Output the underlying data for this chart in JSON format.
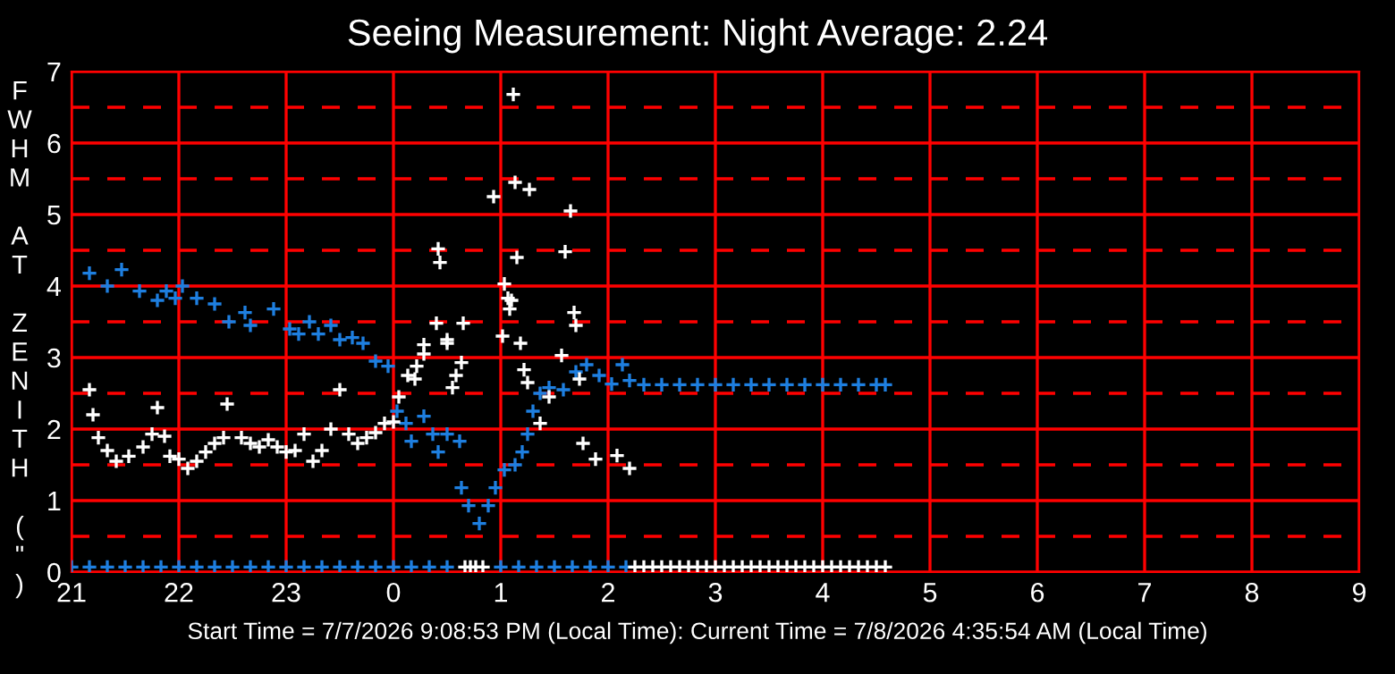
{
  "chart_data": {
    "type": "scatter",
    "title": "Seeing Measurement: Night Average: 2.24",
    "ylabel": "FWHM AT ZENITH (\")",
    "annotations": [
      "Start Time = 7/7/2026 9:08:53 PM (Local Time): Current Time = 7/8/2026 4:35:54 AM (Local Time)"
    ],
    "xlim": [
      "2026-07-07T21:00",
      "2026-07-08T09:00"
    ],
    "ylim": [
      0,
      7
    ],
    "xticks": [
      {
        "value": "2026-07-07T21:00",
        "label": "21"
      },
      {
        "value": "2026-07-07T22:00",
        "label": "22"
      },
      {
        "value": "2026-07-07T23:00",
        "label": "23"
      },
      {
        "value": "2026-07-08T00:00",
        "label": "0"
      },
      {
        "value": "2026-07-08T01:00",
        "label": "1"
      },
      {
        "value": "2026-07-08T02:00",
        "label": "2"
      },
      {
        "value": "2026-07-08T03:00",
        "label": "3"
      },
      {
        "value": "2026-07-08T04:00",
        "label": "4"
      },
      {
        "value": "2026-07-08T05:00",
        "label": "5"
      },
      {
        "value": "2026-07-08T06:00",
        "label": "6"
      },
      {
        "value": "2026-07-08T07:00",
        "label": "7"
      },
      {
        "value": "2026-07-08T08:00",
        "label": "8"
      },
      {
        "value": "2026-07-08T09:00",
        "label": "9"
      }
    ],
    "yticks": [
      0,
      1,
      2,
      3,
      4,
      5,
      6,
      7
    ],
    "grid": true,
    "marker": "cross",
    "ref_lines": [
      {
        "axis": "y",
        "value": 0.5,
        "color": "#ff0000",
        "line_style": "dashed"
      },
      {
        "axis": "y",
        "value": 1.5,
        "color": "#ff0000",
        "line_style": "dashed"
      },
      {
        "axis": "y",
        "value": 2.5,
        "color": "#ff0000",
        "line_style": "dashed"
      },
      {
        "axis": "y",
        "value": 3.5,
        "color": "#ff0000",
        "line_style": "dashed"
      },
      {
        "axis": "y",
        "value": 4.5,
        "color": "#ff0000",
        "line_style": "dashed"
      },
      {
        "axis": "y",
        "value": 5.5,
        "color": "#ff0000",
        "line_style": "dashed"
      },
      {
        "axis": "y",
        "value": 6.5,
        "color": "#ff0000",
        "line_style": "dashed"
      }
    ],
    "series": [
      {
        "color": "#1e7fe0",
        "x": [
          "2026-07-07T21:10",
          "2026-07-07T21:20",
          "2026-07-07T21:28",
          "2026-07-07T21:38",
          "2026-07-07T21:48",
          "2026-07-07T21:53",
          "2026-07-07T21:58",
          "2026-07-07T22:02",
          "2026-07-07T22:10",
          "2026-07-07T22:20",
          "2026-07-07T22:28",
          "2026-07-07T22:37",
          "2026-07-07T22:40",
          "2026-07-07T22:53",
          "2026-07-07T23:02",
          "2026-07-07T23:07",
          "2026-07-07T23:13",
          "2026-07-07T23:18",
          "2026-07-07T23:25",
          "2026-07-07T23:30",
          "2026-07-07T23:37",
          "2026-07-07T23:43",
          "2026-07-07T23:50",
          "2026-07-07T23:57",
          "2026-07-08T00:02",
          "2026-07-08T00:07",
          "2026-07-08T00:10",
          "2026-07-08T00:17",
          "2026-07-08T00:22",
          "2026-07-08T00:25",
          "2026-07-08T00:30",
          "2026-07-08T00:37",
          "2026-07-08T00:38",
          "2026-07-08T00:42",
          "2026-07-08T00:48",
          "2026-07-08T00:53",
          "2026-07-08T00:57",
          "2026-07-08T01:02",
          "2026-07-08T01:08",
          "2026-07-08T01:12",
          "2026-07-08T01:15",
          "2026-07-08T01:18",
          "2026-07-08T01:22",
          "2026-07-08T01:27",
          "2026-07-08T01:35",
          "2026-07-08T01:42",
          "2026-07-08T01:48",
          "2026-07-08T01:55",
          "2026-07-08T02:02",
          "2026-07-08T02:08",
          "2026-07-08T02:12",
          "2026-07-08T02:20",
          "2026-07-08T02:30",
          "2026-07-08T02:40",
          "2026-07-08T02:50",
          "2026-07-08T03:00",
          "2026-07-08T03:10",
          "2026-07-08T03:20",
          "2026-07-08T03:30",
          "2026-07-08T03:40",
          "2026-07-08T03:50",
          "2026-07-08T04:00",
          "2026-07-08T04:10",
          "2026-07-08T04:20",
          "2026-07-08T04:30",
          "2026-07-08T04:35"
        ],
        "values": [
          4.18,
          4.0,
          4.23,
          3.93,
          3.8,
          3.93,
          3.83,
          4.0,
          3.83,
          3.75,
          3.5,
          3.63,
          3.45,
          3.68,
          3.4,
          3.33,
          3.5,
          3.33,
          3.45,
          3.25,
          3.28,
          3.2,
          2.95,
          2.88,
          2.25,
          2.08,
          1.83,
          2.18,
          1.93,
          1.68,
          1.93,
          1.83,
          1.18,
          0.93,
          0.68,
          0.93,
          1.18,
          1.43,
          1.5,
          1.68,
          1.93,
          2.25,
          2.5,
          2.58,
          2.55,
          2.8,
          2.9,
          2.75,
          2.63,
          2.9,
          2.68,
          2.62,
          2.62,
          2.62,
          2.62,
          2.62,
          2.62,
          2.62,
          2.62,
          2.62,
          2.62,
          2.62,
          2.62,
          2.62,
          2.62,
          2.62
        ]
      },
      {
        "color": "#ffffff",
        "x": [
          "2026-07-07T21:10",
          "2026-07-07T21:12",
          "2026-07-07T21:15",
          "2026-07-07T21:20",
          "2026-07-07T21:25",
          "2026-07-07T21:32",
          "2026-07-07T21:40",
          "2026-07-07T21:45",
          "2026-07-07T21:48",
          "2026-07-07T21:52",
          "2026-07-07T21:55",
          "2026-07-07T22:00",
          "2026-07-07T22:05",
          "2026-07-07T22:10",
          "2026-07-07T22:15",
          "2026-07-07T22:20",
          "2026-07-07T22:25",
          "2026-07-07T22:27",
          "2026-07-07T22:35",
          "2026-07-07T22:40",
          "2026-07-07T22:45",
          "2026-07-07T22:50",
          "2026-07-07T22:55",
          "2026-07-07T23:00",
          "2026-07-07T23:05",
          "2026-07-07T23:10",
          "2026-07-07T23:15",
          "2026-07-07T23:20",
          "2026-07-07T23:25",
          "2026-07-07T23:30",
          "2026-07-07T23:35",
          "2026-07-07T23:40",
          "2026-07-07T23:45",
          "2026-07-07T23:50",
          "2026-07-07T23:55",
          "2026-07-08T00:00",
          "2026-07-08T00:03",
          "2026-07-08T00:08",
          "2026-07-08T00:12",
          "2026-07-08T00:13",
          "2026-07-08T00:17",
          "2026-07-08T00:17",
          "2026-07-08T00:24",
          "2026-07-08T00:25",
          "2026-07-08T00:26",
          "2026-07-08T00:30",
          "2026-07-08T00:30",
          "2026-07-08T00:33",
          "2026-07-08T00:35",
          "2026-07-08T00:38",
          "2026-07-08T00:39",
          "2026-07-08T00:56",
          "2026-07-08T01:01",
          "2026-07-08T01:02",
          "2026-07-08T01:04",
          "2026-07-08T01:05",
          "2026-07-08T01:06",
          "2026-07-08T01:07",
          "2026-07-08T01:08",
          "2026-07-08T01:09",
          "2026-07-08T01:11",
          "2026-07-08T01:13",
          "2026-07-08T01:15",
          "2026-07-08T01:16",
          "2026-07-08T01:22",
          "2026-07-08T01:27",
          "2026-07-08T01:34",
          "2026-07-08T01:36",
          "2026-07-08T01:39",
          "2026-07-08T01:41",
          "2026-07-08T01:42",
          "2026-07-08T01:44",
          "2026-07-08T01:46",
          "2026-07-08T01:53",
          "2026-07-08T02:05",
          "2026-07-08T02:12"
        ],
        "values": [
          2.55,
          2.2,
          1.88,
          1.7,
          1.55,
          1.62,
          1.75,
          1.93,
          2.3,
          1.9,
          1.62,
          1.58,
          1.45,
          1.55,
          1.68,
          1.8,
          1.88,
          2.35,
          1.88,
          1.8,
          1.75,
          1.85,
          1.75,
          1.68,
          1.7,
          1.93,
          1.55,
          1.7,
          2.0,
          2.55,
          1.93,
          1.8,
          1.88,
          1.95,
          2.08,
          2.1,
          2.45,
          2.75,
          2.7,
          2.88,
          3.05,
          3.18,
          3.48,
          4.52,
          4.33,
          3.2,
          3.25,
          2.58,
          2.75,
          2.93,
          3.48,
          5.25,
          3.3,
          4.03,
          3.83,
          3.68,
          3.8,
          6.68,
          5.45,
          4.4,
          3.2,
          2.83,
          2.65,
          5.35,
          2.08,
          2.45,
          3.03,
          4.48,
          5.05,
          3.63,
          3.45,
          2.7,
          1.8,
          1.58,
          1.63,
          1.45
        ]
      },
      {
        "color": "#1e7fe0",
        "x": [
          "2026-07-07T21:00",
          "2026-07-07T21:10",
          "2026-07-07T21:20",
          "2026-07-07T21:30",
          "2026-07-07T21:40",
          "2026-07-07T21:50",
          "2026-07-07T22:00",
          "2026-07-07T22:10",
          "2026-07-07T22:20",
          "2026-07-07T22:30",
          "2026-07-07T22:40",
          "2026-07-07T22:50",
          "2026-07-07T23:00",
          "2026-07-07T23:10",
          "2026-07-07T23:20",
          "2026-07-07T23:30",
          "2026-07-07T23:40",
          "2026-07-07T23:50",
          "2026-07-08T00:00",
          "2026-07-08T00:10",
          "2026-07-08T00:20",
          "2026-07-08T00:30",
          "2026-07-08T01:00",
          "2026-07-08T01:10",
          "2026-07-08T01:20",
          "2026-07-08T01:30",
          "2026-07-08T01:40",
          "2026-07-08T01:50",
          "2026-07-08T02:00",
          "2026-07-08T02:10"
        ],
        "values": [
          0.07,
          0.07,
          0.07,
          0.07,
          0.07,
          0.07,
          0.07,
          0.07,
          0.07,
          0.07,
          0.07,
          0.07,
          0.07,
          0.07,
          0.07,
          0.07,
          0.07,
          0.07,
          0.07,
          0.07,
          0.07,
          0.07,
          0.07,
          0.07,
          0.07,
          0.07,
          0.07,
          0.07,
          0.07,
          0.07
        ]
      },
      {
        "color": "#ffffff",
        "x": [
          "2026-07-08T00:40",
          "2026-07-08T00:43",
          "2026-07-08T00:46",
          "2026-07-08T00:50",
          "2026-07-08T02:15",
          "2026-07-08T02:20",
          "2026-07-08T02:25",
          "2026-07-08T02:30",
          "2026-07-08T02:35",
          "2026-07-08T02:40",
          "2026-07-08T02:45",
          "2026-07-08T02:50",
          "2026-07-08T02:55",
          "2026-07-08T03:00",
          "2026-07-08T03:05",
          "2026-07-08T03:10",
          "2026-07-08T03:15",
          "2026-07-08T03:20",
          "2026-07-08T03:25",
          "2026-07-08T03:30",
          "2026-07-08T03:35",
          "2026-07-08T03:40",
          "2026-07-08T03:45",
          "2026-07-08T03:50",
          "2026-07-08T03:55",
          "2026-07-08T04:00",
          "2026-07-08T04:05",
          "2026-07-08T04:10",
          "2026-07-08T04:15",
          "2026-07-08T04:20",
          "2026-07-08T04:25",
          "2026-07-08T04:30",
          "2026-07-08T04:35"
        ],
        "values": [
          0.07,
          0.07,
          0.07,
          0.07,
          0.07,
          0.07,
          0.07,
          0.07,
          0.07,
          0.07,
          0.07,
          0.07,
          0.07,
          0.07,
          0.07,
          0.07,
          0.07,
          0.07,
          0.07,
          0.07,
          0.07,
          0.07,
          0.07,
          0.07,
          0.07,
          0.07,
          0.07,
          0.07,
          0.07,
          0.07,
          0.07,
          0.07,
          0.07
        ]
      }
    ]
  }
}
